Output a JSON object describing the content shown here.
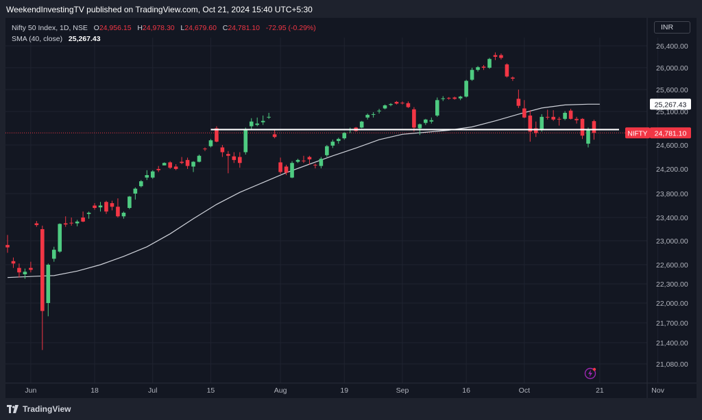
{
  "header": {
    "publisher_line": "WeekendInvestingTV published on TradingView.com, Oct 21, 2024 15:40 UTC+5:30"
  },
  "legend": {
    "symbol": "Nifty 50 Index, 1D, NSE",
    "open_label": "O",
    "open": "24,956.15",
    "high_label": "H",
    "high": "24,978.30",
    "low_label": "L",
    "low": "24,679.60",
    "close_label": "C",
    "close": "24,781.10",
    "change": "-72.95 (-0.29%)",
    "sma_label": "SMA (40, close)",
    "sma_value": "25,267.43"
  },
  "toolbar": {
    "currency": "INR"
  },
  "footer": {
    "brand": "TradingView"
  },
  "colors": {
    "up": "#26a69a",
    "up_candle": "#4ecb81",
    "down": "#f23645",
    "background": "#131722",
    "sma": "#d1d4dc",
    "support": "#ffffff"
  },
  "chart_data": {
    "type": "candlestick",
    "title": "Nifty 50 Index, 1D, NSE",
    "y_axis": {
      "ticks": [
        26400,
        26000,
        25600,
        25100,
        24600,
        24200,
        23800,
        23400,
        23000,
        22600,
        22300,
        22000,
        21700,
        21400,
        21080
      ],
      "tick_labels": [
        "26,400.00",
        "26,000.00",
        "25,600.00",
        "25,100.00",
        "24,600.00",
        "24,200.00",
        "23,800.00",
        "23,400.00",
        "23,000.00",
        "22,600.00",
        "22,300.00",
        "22,000.00",
        "21,700.00",
        "21,400.00",
        "21,080.00"
      ]
    },
    "x_axis": {
      "labels": [
        "Jun",
        "18",
        "Jul",
        "15",
        "Aug",
        "19",
        "Sep",
        "16",
        "Oct",
        "21",
        "Nov"
      ],
      "label_index": [
        4,
        15,
        25,
        35,
        47,
        58,
        68,
        79,
        89,
        102,
        112
      ]
    },
    "price_labels": {
      "sma": "25,267.43",
      "last_symbol": "NIFTY",
      "last": "24,781.10"
    },
    "support_level": 24830,
    "last_price": 24781.1,
    "candles": [
      {
        "o": 22930,
        "h": 23100,
        "l": 22800,
        "c": 22890
      },
      {
        "o": 22660,
        "h": 22720,
        "l": 22550,
        "c": 22620
      },
      {
        "o": 22550,
        "h": 22620,
        "l": 22400,
        "c": 22480
      },
      {
        "o": 22450,
        "h": 22540,
        "l": 22380,
        "c": 22490
      },
      {
        "o": 22550,
        "h": 22650,
        "l": 22480,
        "c": 22520
      },
      {
        "o": 23300,
        "h": 23340,
        "l": 23240,
        "c": 23270
      },
      {
        "o": 23200,
        "h": 23260,
        "l": 21290,
        "c": 21880
      },
      {
        "o": 22000,
        "h": 22620,
        "l": 21800,
        "c": 22600
      },
      {
        "o": 22700,
        "h": 22900,
        "l": 22650,
        "c": 22850
      },
      {
        "o": 22820,
        "h": 23300,
        "l": 22800,
        "c": 23290
      },
      {
        "o": 23300,
        "h": 23420,
        "l": 23240,
        "c": 23280
      },
      {
        "o": 23310,
        "h": 23400,
        "l": 23260,
        "c": 23300
      },
      {
        "o": 23300,
        "h": 23360,
        "l": 23250,
        "c": 23330
      },
      {
        "o": 23400,
        "h": 23500,
        "l": 23320,
        "c": 23330
      },
      {
        "o": 23460,
        "h": 23500,
        "l": 23380,
        "c": 23480
      },
      {
        "o": 23600,
        "h": 23640,
        "l": 23530,
        "c": 23560
      },
      {
        "o": 23570,
        "h": 23660,
        "l": 23500,
        "c": 23600
      },
      {
        "o": 23660,
        "h": 23680,
        "l": 23460,
        "c": 23500
      },
      {
        "o": 23640,
        "h": 23680,
        "l": 23520,
        "c": 23580
      },
      {
        "o": 23580,
        "h": 23720,
        "l": 23400,
        "c": 23420
      },
      {
        "o": 23420,
        "h": 23500,
        "l": 23380,
        "c": 23480
      },
      {
        "o": 23560,
        "h": 23760,
        "l": 23540,
        "c": 23750
      },
      {
        "o": 23800,
        "h": 23900,
        "l": 23700,
        "c": 23880
      },
      {
        "o": 23920,
        "h": 24020,
        "l": 23900,
        "c": 24000
      },
      {
        "o": 24060,
        "h": 24180,
        "l": 24020,
        "c": 24100
      },
      {
        "o": 24060,
        "h": 24180,
        "l": 24040,
        "c": 24160
      },
      {
        "o": 24200,
        "h": 24250,
        "l": 24150,
        "c": 24180
      },
      {
        "o": 24260,
        "h": 24310,
        "l": 24260,
        "c": 24300
      },
      {
        "o": 24310,
        "h": 24330,
        "l": 24200,
        "c": 24220
      },
      {
        "o": 24240,
        "h": 24280,
        "l": 24180,
        "c": 24200
      },
      {
        "o": 24320,
        "h": 24400,
        "l": 24280,
        "c": 24300
      },
      {
        "o": 24350,
        "h": 24390,
        "l": 24200,
        "c": 24250
      },
      {
        "o": 24240,
        "h": 24330,
        "l": 24150,
        "c": 24320
      },
      {
        "o": 24320,
        "h": 24440,
        "l": 24310,
        "c": 24420
      },
      {
        "o": 24540,
        "h": 24560,
        "l": 24500,
        "c": 24530
      },
      {
        "o": 24580,
        "h": 24690,
        "l": 24560,
        "c": 24670
      },
      {
        "o": 24850,
        "h": 24880,
        "l": 24640,
        "c": 24650
      },
      {
        "o": 24560,
        "h": 24600,
        "l": 24400,
        "c": 24480
      },
      {
        "o": 24450,
        "h": 24500,
        "l": 24130,
        "c": 24420
      },
      {
        "o": 24410,
        "h": 24480,
        "l": 24300,
        "c": 24350
      },
      {
        "o": 24400,
        "h": 24480,
        "l": 24220,
        "c": 24300
      },
      {
        "o": 24480,
        "h": 24860,
        "l": 24440,
        "c": 24840
      },
      {
        "o": 24880,
        "h": 25000,
        "l": 24830,
        "c": 24950
      },
      {
        "o": 24900,
        "h": 25010,
        "l": 24880,
        "c": 24920
      },
      {
        "o": 24940,
        "h": 25040,
        "l": 24900,
        "c": 24960
      },
      {
        "o": 25020,
        "h": 25080,
        "l": 24990,
        "c": 25020
      },
      {
        "o": 24760,
        "h": 24830,
        "l": 24700,
        "c": 24720
      },
      {
        "o": 24310,
        "h": 24390,
        "l": 24120,
        "c": 24150
      },
      {
        "o": 24240,
        "h": 24270,
        "l": 24100,
        "c": 24140
      },
      {
        "o": 24060,
        "h": 24330,
        "l": 24050,
        "c": 24300
      },
      {
        "o": 24320,
        "h": 24370,
        "l": 24300,
        "c": 24350
      },
      {
        "o": 24340,
        "h": 24420,
        "l": 24300,
        "c": 24330
      },
      {
        "o": 24400,
        "h": 24420,
        "l": 24270,
        "c": 24360
      },
      {
        "o": 24270,
        "h": 24290,
        "l": 24210,
        "c": 24260
      },
      {
        "o": 24250,
        "h": 24400,
        "l": 24210,
        "c": 24370
      },
      {
        "o": 24430,
        "h": 24600,
        "l": 24400,
        "c": 24580
      },
      {
        "o": 24590,
        "h": 24680,
        "l": 24550,
        "c": 24650
      },
      {
        "o": 24660,
        "h": 24710,
        "l": 24620,
        "c": 24690
      },
      {
        "o": 24700,
        "h": 24790,
        "l": 24680,
        "c": 24780
      },
      {
        "o": 24820,
        "h": 24860,
        "l": 24780,
        "c": 24840
      },
      {
        "o": 24860,
        "h": 24870,
        "l": 24800,
        "c": 24810
      },
      {
        "o": 24860,
        "h": 24960,
        "l": 24850,
        "c": 24950
      },
      {
        "o": 25010,
        "h": 25070,
        "l": 24980,
        "c": 25050
      },
      {
        "o": 25050,
        "h": 25090,
        "l": 25010,
        "c": 25060
      },
      {
        "o": 25110,
        "h": 25160,
        "l": 25070,
        "c": 25120
      },
      {
        "o": 25170,
        "h": 25260,
        "l": 25150,
        "c": 25240
      },
      {
        "o": 25250,
        "h": 25290,
        "l": 25220,
        "c": 25270
      },
      {
        "o": 25320,
        "h": 25340,
        "l": 25260,
        "c": 25280
      },
      {
        "o": 25300,
        "h": 25330,
        "l": 25260,
        "c": 25290
      },
      {
        "o": 25290,
        "h": 25330,
        "l": 25180,
        "c": 25200
      },
      {
        "o": 25150,
        "h": 25200,
        "l": 24800,
        "c": 24860
      },
      {
        "o": 24850,
        "h": 24920,
        "l": 24750,
        "c": 24910
      },
      {
        "o": 24930,
        "h": 24990,
        "l": 24900,
        "c": 24980
      },
      {
        "o": 24950,
        "h": 25010,
        "l": 24920,
        "c": 24970
      },
      {
        "o": 25040,
        "h": 25420,
        "l": 25020,
        "c": 25360
      },
      {
        "o": 25400,
        "h": 25450,
        "l": 25340,
        "c": 25400
      },
      {
        "o": 25410,
        "h": 25430,
        "l": 25370,
        "c": 25400
      },
      {
        "o": 25420,
        "h": 25440,
        "l": 25370,
        "c": 25390
      },
      {
        "o": 25400,
        "h": 25460,
        "l": 25360,
        "c": 25440
      },
      {
        "o": 25440,
        "h": 25780,
        "l": 25420,
        "c": 25760
      },
      {
        "o": 25780,
        "h": 26000,
        "l": 25760,
        "c": 25960
      },
      {
        "o": 25960,
        "h": 26030,
        "l": 25930,
        "c": 26010
      },
      {
        "o": 26020,
        "h": 26050,
        "l": 25960,
        "c": 26000
      },
      {
        "o": 26000,
        "h": 26180,
        "l": 25980,
        "c": 26160
      },
      {
        "o": 26230,
        "h": 26280,
        "l": 26140,
        "c": 26200
      },
      {
        "o": 26230,
        "h": 26260,
        "l": 26150,
        "c": 26180
      },
      {
        "o": 26060,
        "h": 26080,
        "l": 25820,
        "c": 25840
      },
      {
        "o": 25820,
        "h": 25840,
        "l": 25760,
        "c": 25800
      },
      {
        "o": 25390,
        "h": 25600,
        "l": 25180,
        "c": 25230
      },
      {
        "o": 25170,
        "h": 25360,
        "l": 25000,
        "c": 25010
      },
      {
        "o": 25040,
        "h": 25130,
        "l": 24650,
        "c": 24800
      },
      {
        "o": 24850,
        "h": 24950,
        "l": 24720,
        "c": 24780
      },
      {
        "o": 24820,
        "h": 25060,
        "l": 24800,
        "c": 25020
      },
      {
        "o": 25020,
        "h": 25140,
        "l": 24980,
        "c": 25010
      },
      {
        "o": 25020,
        "h": 25130,
        "l": 24960,
        "c": 24980
      },
      {
        "o": 24990,
        "h": 25020,
        "l": 24890,
        "c": 24980
      },
      {
        "o": 24990,
        "h": 25110,
        "l": 24970,
        "c": 25080
      },
      {
        "o": 25120,
        "h": 25160,
        "l": 24980,
        "c": 24990
      },
      {
        "o": 24990,
        "h": 25020,
        "l": 24920,
        "c": 24970
      },
      {
        "o": 24990,
        "h": 25000,
        "l": 24690,
        "c": 24740
      },
      {
        "o": 24620,
        "h": 24860,
        "l": 24560,
        "c": 24840
      },
      {
        "o": 24956.15,
        "h": 24978.3,
        "l": 24679.6,
        "c": 24781.1
      }
    ],
    "sma": {
      "name": "SMA (40, close)",
      "points": [
        [
          0,
          22400
        ],
        [
          5,
          22420
        ],
        [
          8,
          22430
        ],
        [
          12,
          22500
        ],
        [
          16,
          22600
        ],
        [
          20,
          22740
        ],
        [
          24,
          22900
        ],
        [
          28,
          23120
        ],
        [
          32,
          23380
        ],
        [
          36,
          23620
        ],
        [
          40,
          23820
        ],
        [
          44,
          23980
        ],
        [
          48,
          24140
        ],
        [
          52,
          24280
        ],
        [
          56,
          24420
        ],
        [
          60,
          24550
        ],
        [
          64,
          24680
        ],
        [
          68,
          24760
        ],
        [
          72,
          24790
        ],
        [
          76,
          24820
        ],
        [
          80,
          24870
        ],
        [
          84,
          24960
        ],
        [
          88,
          25060
        ],
        [
          92,
          25180
        ],
        [
          96,
          25250
        ],
        [
          100,
          25267
        ],
        [
          102,
          25267.43
        ]
      ]
    }
  }
}
